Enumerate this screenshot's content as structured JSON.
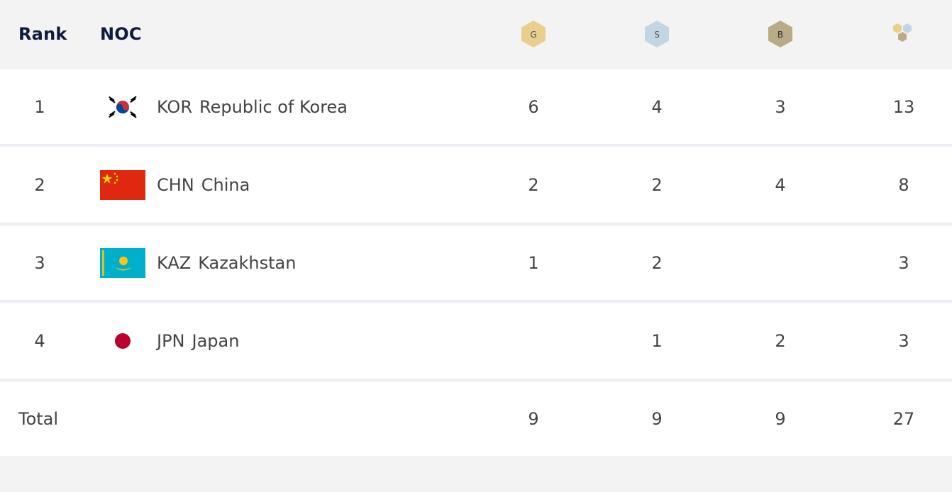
{
  "header": {
    "rank_label": "Rank",
    "noc_label": "NOC",
    "gold_letter": "G",
    "silver_letter": "S",
    "bronze_letter": "B"
  },
  "colors": {
    "gold": "#e8d08c",
    "silver": "#c3d5e3",
    "bronze": "#b9aa88",
    "header_text": "#0f1b3d"
  },
  "rows": [
    {
      "rank": "1",
      "code": "KOR",
      "name": "Republic of Korea",
      "flag_icon": "south-korea-flag-icon",
      "gold": "6",
      "silver": "4",
      "bronze": "3",
      "total": "13"
    },
    {
      "rank": "2",
      "code": "CHN",
      "name": "China",
      "flag_icon": "china-flag-icon",
      "gold": "2",
      "silver": "2",
      "bronze": "4",
      "total": "8"
    },
    {
      "rank": "3",
      "code": "KAZ",
      "name": "Kazakhstan",
      "flag_icon": "kazakhstan-flag-icon",
      "gold": "1",
      "silver": "2",
      "bronze": "",
      "total": "3"
    },
    {
      "rank": "4",
      "code": "JPN",
      "name": "Japan",
      "flag_icon": "japan-flag-icon",
      "gold": "",
      "silver": "1",
      "bronze": "2",
      "total": "3"
    }
  ],
  "totals": {
    "label": "Total",
    "gold": "9",
    "silver": "9",
    "bronze": "9",
    "total": "27"
  }
}
